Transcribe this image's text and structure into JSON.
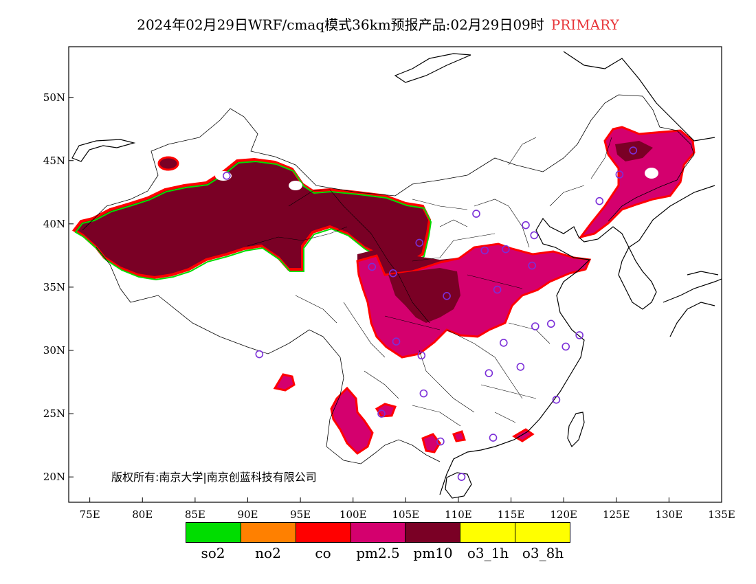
{
  "title": {
    "main": "2024年02月29日WRF/cmaq模式36km预报产品:02月29日09时",
    "tag": "PRIMARY",
    "tag_color": "#e8363a"
  },
  "map": {
    "lon_labels": [
      "75E",
      "80E",
      "85E",
      "90E",
      "95E",
      "100E",
      "105E",
      "110E",
      "115E",
      "120E",
      "125E",
      "130E",
      "135E"
    ],
    "lat_labels": [
      "50N",
      "45N",
      "40N",
      "35N",
      "30N",
      "25N",
      "20N"
    ],
    "lon_range": [
      73,
      135
    ],
    "lat_range": [
      18,
      54
    ],
    "copyright": "版权所有:南京大学|南京创蓝科技有限公司"
  },
  "legend": {
    "items": [
      {
        "label": "so2",
        "color": "#00dd00"
      },
      {
        "label": "no2",
        "color": "#ff8000"
      },
      {
        "label": "co",
        "color": "#ff0000"
      },
      {
        "label": "pm2.5",
        "color": "#d4006e"
      },
      {
        "label": "pm10",
        "color": "#7a0025"
      },
      {
        "label": "o3_1h",
        "color": "#ffff00"
      },
      {
        "label": "o3_8h",
        "color": "#ffff00"
      }
    ]
  },
  "stations": [
    [
      88,
      43.8
    ],
    [
      101.8,
      36.6
    ],
    [
      103.8,
      36.1
    ],
    [
      106.3,
      38.5
    ],
    [
      111.7,
      40.8
    ],
    [
      112.5,
      37.9
    ],
    [
      114.5,
      38.0
    ],
    [
      116.4,
      39.9
    ],
    [
      117.2,
      39.1
    ],
    [
      117.0,
      36.7
    ],
    [
      113.7,
      34.8
    ],
    [
      108.9,
      34.3
    ],
    [
      104.1,
      30.7
    ],
    [
      106.5,
      29.6
    ],
    [
      106.7,
      26.6
    ],
    [
      102.7,
      25.0
    ],
    [
      108.3,
      22.8
    ],
    [
      113.3,
      23.1
    ],
    [
      110.3,
      20.0
    ],
    [
      112.9,
      28.2
    ],
    [
      115.9,
      28.7
    ],
    [
      114.3,
      30.6
    ],
    [
      117.3,
      31.9
    ],
    [
      118.8,
      32.1
    ],
    [
      120.2,
      30.3
    ],
    [
      121.5,
      31.2
    ],
    [
      119.3,
      26.1
    ],
    [
      126.6,
      45.8
    ],
    [
      125.3,
      43.9
    ],
    [
      123.4,
      41.8
    ],
    [
      91.1,
      29.7
    ]
  ]
}
